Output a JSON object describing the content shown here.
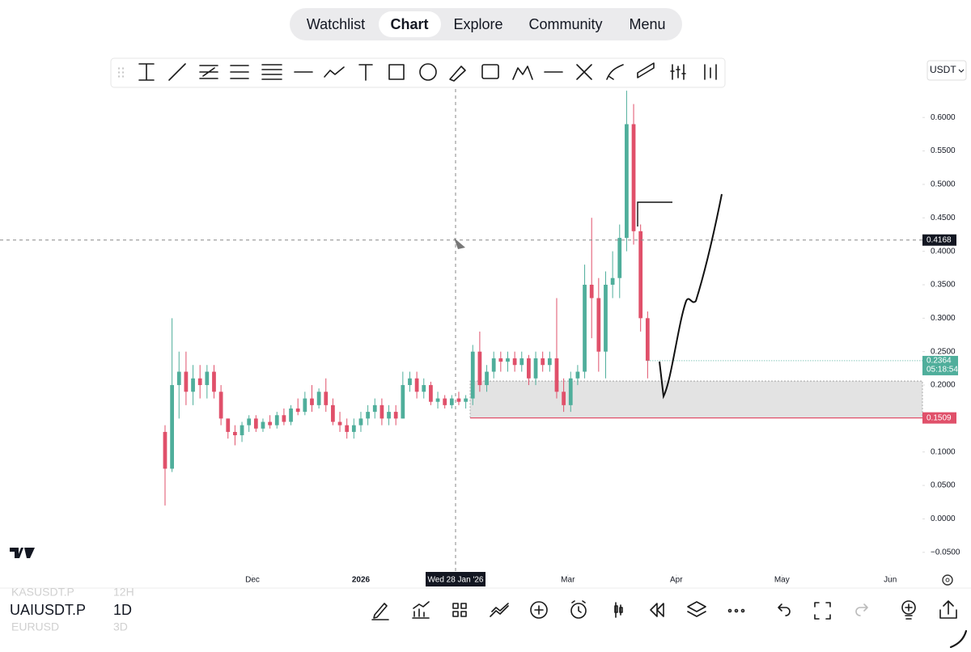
{
  "nav": [
    "Watchlist",
    "Chart",
    "Explore",
    "Community",
    "Menu"
  ],
  "currency": "USDT",
  "symbols": [
    {
      "name": "KASUSDT.P",
      "interval": "12H"
    },
    {
      "name": "UAIUSDT.P",
      "interval": "1D"
    },
    {
      "name": "EURUSD",
      "interval": "3D"
    }
  ],
  "chart_data": {
    "type": "candlestick",
    "up_color": "#4fae9b",
    "down_color": "#e0506a",
    "open": [
      0.13,
      0.075,
      0.2,
      0.22,
      0.19,
      0.21,
      0.2,
      0.22,
      0.19,
      0.15,
      0.13,
      0.125,
      0.14,
      0.15,
      0.135,
      0.145,
      0.14,
      0.155,
      0.145,
      0.165,
      0.16,
      0.18,
      0.17,
      0.19,
      0.17,
      0.145,
      0.14,
      0.13,
      0.14,
      0.15,
      0.16,
      0.17,
      0.15,
      0.16,
      0.15,
      0.2,
      0.21,
      0.19,
      0.2,
      0.175,
      0.18,
      0.17,
      0.18,
      0.175,
      0.18,
      0.25,
      0.2,
      0.22,
      0.24,
      0.235,
      0.24,
      0.23,
      0.24,
      0.21,
      0.24,
      0.23,
      0.24,
      0.19,
      0.17,
      0.21,
      0.22,
      0.35,
      0.33,
      0.25,
      0.35,
      0.36,
      0.42,
      0.59,
      0.43,
      0.3
    ],
    "high": [
      0.14,
      0.3,
      0.25,
      0.25,
      0.23,
      0.23,
      0.23,
      0.23,
      0.2,
      0.15,
      0.14,
      0.145,
      0.155,
      0.155,
      0.15,
      0.155,
      0.16,
      0.165,
      0.17,
      0.18,
      0.19,
      0.2,
      0.195,
      0.21,
      0.18,
      0.16,
      0.15,
      0.15,
      0.16,
      0.17,
      0.18,
      0.18,
      0.17,
      0.17,
      0.22,
      0.22,
      0.22,
      0.21,
      0.205,
      0.19,
      0.185,
      0.185,
      0.19,
      0.185,
      0.26,
      0.28,
      0.23,
      0.25,
      0.25,
      0.25,
      0.25,
      0.25,
      0.245,
      0.25,
      0.25,
      0.25,
      0.33,
      0.21,
      0.22,
      0.23,
      0.38,
      0.45,
      0.36,
      0.37,
      0.4,
      0.44,
      0.64,
      0.62,
      0.44,
      0.31
    ],
    "low": [
      0.02,
      0.07,
      0.15,
      0.17,
      0.17,
      0.18,
      0.18,
      0.18,
      0.14,
      0.12,
      0.11,
      0.115,
      0.13,
      0.13,
      0.13,
      0.135,
      0.135,
      0.14,
      0.14,
      0.155,
      0.155,
      0.16,
      0.165,
      0.16,
      0.14,
      0.13,
      0.12,
      0.12,
      0.13,
      0.14,
      0.15,
      0.14,
      0.14,
      0.14,
      0.15,
      0.19,
      0.18,
      0.18,
      0.17,
      0.165,
      0.165,
      0.165,
      0.17,
      0.165,
      0.17,
      0.19,
      0.19,
      0.21,
      0.22,
      0.22,
      0.22,
      0.22,
      0.2,
      0.2,
      0.22,
      0.22,
      0.18,
      0.16,
      0.16,
      0.2,
      0.21,
      0.27,
      0.22,
      0.21,
      0.33,
      0.33,
      0.4,
      0.41,
      0.28,
      0.21
    ],
    "close": [
      0.075,
      0.2,
      0.22,
      0.19,
      0.21,
      0.2,
      0.22,
      0.19,
      0.15,
      0.13,
      0.125,
      0.14,
      0.15,
      0.135,
      0.145,
      0.14,
      0.155,
      0.145,
      0.165,
      0.16,
      0.18,
      0.17,
      0.19,
      0.17,
      0.145,
      0.14,
      0.13,
      0.14,
      0.15,
      0.16,
      0.17,
      0.15,
      0.16,
      0.15,
      0.2,
      0.21,
      0.19,
      0.2,
      0.175,
      0.18,
      0.17,
      0.18,
      0.175,
      0.18,
      0.25,
      0.2,
      0.22,
      0.24,
      0.235,
      0.24,
      0.23,
      0.24,
      0.21,
      0.24,
      0.23,
      0.24,
      0.19,
      0.17,
      0.21,
      0.22,
      0.35,
      0.33,
      0.25,
      0.35,
      0.36,
      0.42,
      0.59,
      0.43,
      0.3,
      0.2364
    ],
    "xlim": [
      -23.6,
      108.3
    ],
    "xticks": [
      {
        "value": 12.5,
        "label": "Dec"
      },
      {
        "value": 28.0,
        "label": "2026"
      },
      {
        "value": 57.6,
        "label": "Mar"
      },
      {
        "value": 73.1,
        "label": "Apr"
      },
      {
        "value": 88.2,
        "label": "May"
      },
      {
        "value": 103.7,
        "label": "Jun"
      }
    ],
    "ylim": [
      -0.0829,
      0.7756
    ],
    "yticks": [
      {
        "value": -0.05,
        "label": "−0.0500"
      },
      {
        "value": 0,
        "label": "0.0000"
      },
      {
        "value": 0.05,
        "label": "0.0500"
      },
      {
        "value": 0.1,
        "label": "0.1000"
      },
      {
        "value": 0.15,
        "label": "0.1500"
      },
      {
        "value": 0.2,
        "label": "0.2000"
      },
      {
        "value": 0.25,
        "label": "0.2500"
      },
      {
        "value": 0.3,
        "label": "0.3000"
      },
      {
        "value": 0.35,
        "label": "0.3500"
      },
      {
        "value": 0.4,
        "label": "0.4000"
      },
      {
        "value": 0.45,
        "label": "0.4500"
      },
      {
        "value": 0.5,
        "label": "0.5000"
      },
      {
        "value": 0.55,
        "label": "0.5500"
      },
      {
        "value": 0.6,
        "label": "0.6000"
      }
    ],
    "crosshair_price": 0.4168,
    "crosshair_date": "Wed 28 Jan '26",
    "last_price": 0.2364,
    "countdown": "05:18:54",
    "zone": {
      "top": 0.206,
      "bottom": 0.1509
    }
  }
}
